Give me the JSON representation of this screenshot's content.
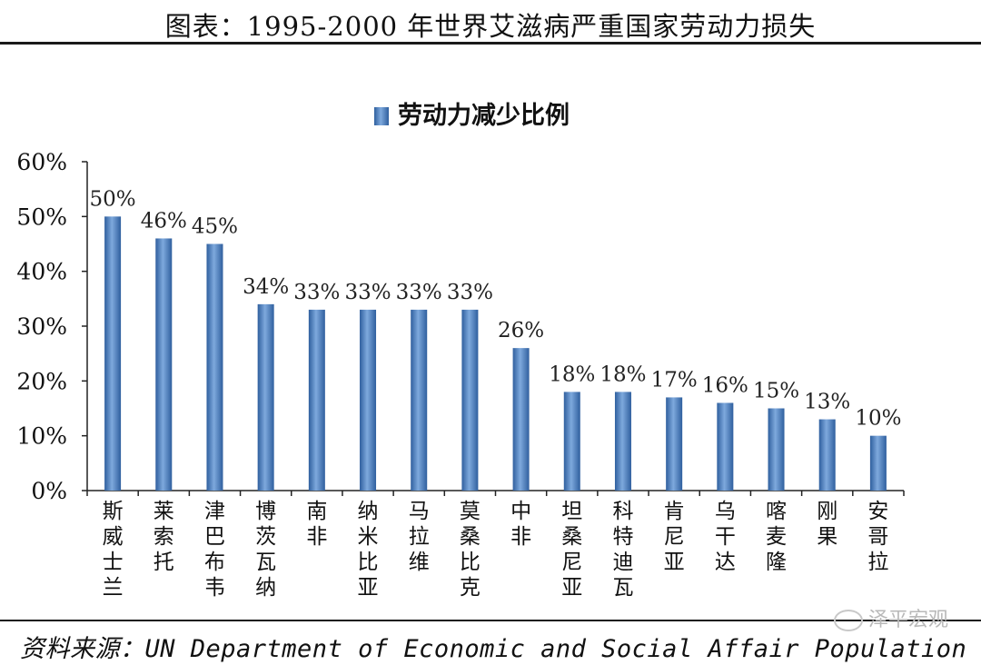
{
  "header": {
    "title": "图表：1995-2000 年世界艾滋病严重国家劳动力损失"
  },
  "footer": {
    "source": "资料来源：UN Department of Economic and Social Affair Population"
  },
  "watermark": {
    "text": "泽平宏观",
    "icon": "wechat-icon"
  },
  "colors": {
    "bar": "#4a7fc0",
    "bar_light": "#7ea9dd",
    "bar_dark": "#2f5f9e",
    "axis": "#222222"
  },
  "chart_data": {
    "type": "bar",
    "legend": {
      "label": "劳动力减少比例",
      "position": "top-center"
    },
    "categories": [
      "斯威士兰",
      "莱索托",
      "津巴布韦",
      "博茨瓦纳",
      "南非",
      "纳米比亚",
      "马拉维",
      "莫桑比克",
      "中非",
      "坦桑尼亚",
      "科特迪瓦",
      "肯尼亚",
      "乌干达",
      "喀麦隆",
      "刚果",
      "安哥拉"
    ],
    "series": [
      {
        "name": "劳动力减少比例",
        "values": [
          50,
          46,
          45,
          34,
          33,
          33,
          33,
          33,
          26,
          18,
          18,
          17,
          16,
          15,
          13,
          10
        ],
        "labels": [
          "50%",
          "46%",
          "45%",
          "34%",
          "33%",
          "33%",
          "33%",
          "33%",
          "26%",
          "18%",
          "18%",
          "17%",
          "16%",
          "15%",
          "13%",
          "10%"
        ]
      }
    ],
    "ylim": [
      0,
      60
    ],
    "yticks": [
      "0%",
      "10%",
      "20%",
      "30%",
      "40%",
      "50%",
      "60%"
    ],
    "grid": false
  }
}
